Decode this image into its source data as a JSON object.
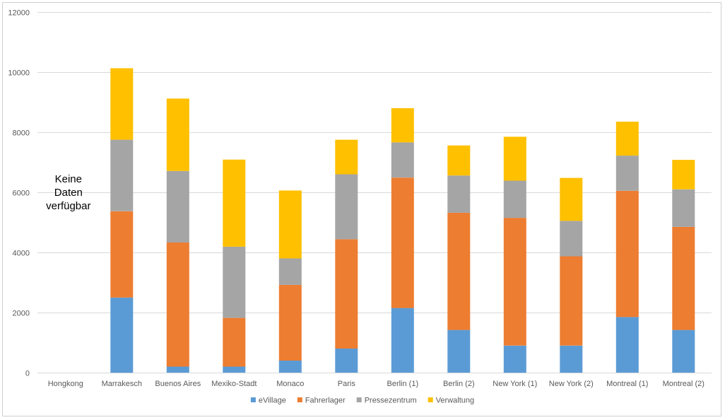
{
  "chart_data": {
    "type": "bar",
    "stacked": true,
    "title": "",
    "xlabel": "",
    "ylabel": "",
    "ylim": [
      0,
      12000
    ],
    "yticks": [
      0,
      2000,
      4000,
      6000,
      8000,
      10000,
      12000
    ],
    "grid": true,
    "legend_position": "bottom",
    "categories": [
      "Hongkong",
      "Marrakesch",
      "Buenos Aires",
      "Mexiko-Stadt",
      "Monaco",
      "Paris",
      "Berlin (1)",
      "Berlin (2)",
      "New York (1)",
      "New York (2)",
      "Montreal (1)",
      "Montreal (2)"
    ],
    "series": [
      {
        "name": "eVillage",
        "color": "#5b9bd5",
        "values": [
          0,
          2500,
          200,
          200,
          400,
          800,
          2150,
          1420,
          900,
          900,
          1850,
          1420
        ]
      },
      {
        "name": "Fahrerlager",
        "color": "#ed7d31",
        "values": [
          0,
          2870,
          4130,
          1620,
          2520,
          3640,
          4340,
          3900,
          4250,
          2970,
          4200,
          3430
        ]
      },
      {
        "name": "Pressezentrum",
        "color": "#a5a5a5",
        "values": [
          0,
          2380,
          2380,
          2370,
          880,
          2160,
          1170,
          1240,
          1240,
          1180,
          1170,
          1250
        ]
      },
      {
        "name": "Verwaltung",
        "color": "#ffc000",
        "values": [
          0,
          2380,
          2410,
          2900,
          2260,
          1150,
          1140,
          1000,
          1460,
          1430,
          1130,
          980
        ]
      }
    ],
    "annotations": [
      {
        "category": "Hongkong",
        "lines": [
          "Keine",
          "Daten",
          "verfügbar"
        ]
      }
    ]
  }
}
